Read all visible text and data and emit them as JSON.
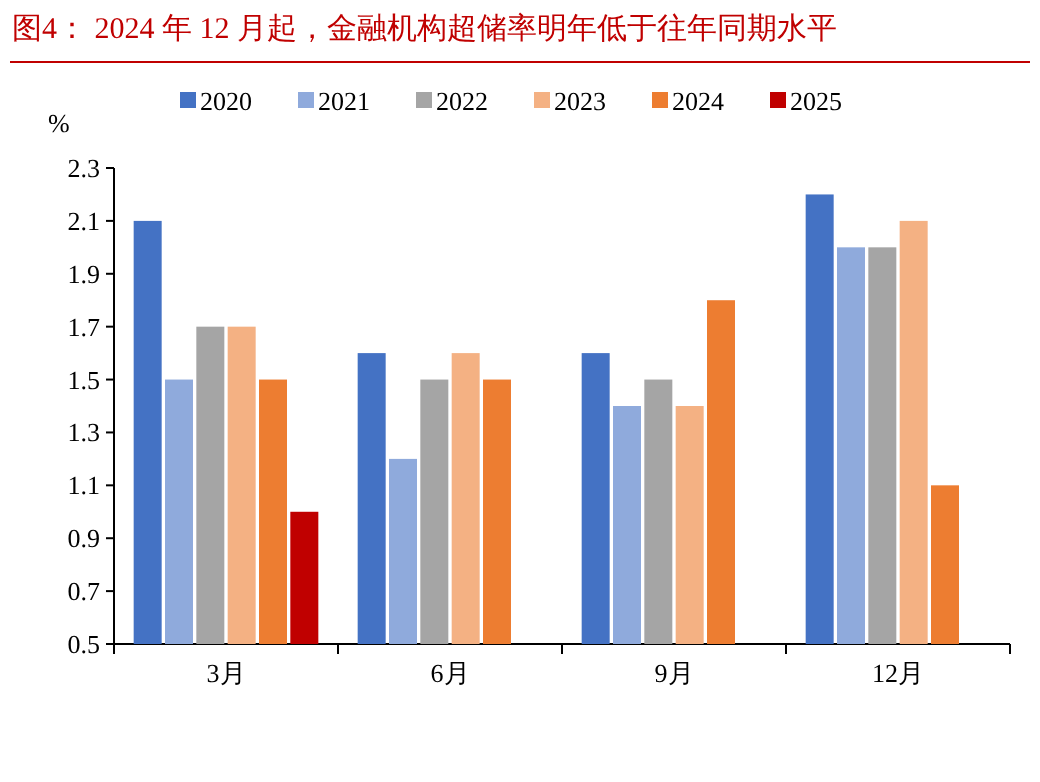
{
  "chart_data": {
    "type": "bar",
    "title": "图4：  2024 年 12 月起，金融机构超储率明年低于往年同期水平",
    "ylabel": "%",
    "categories": [
      "3月",
      "6月",
      "9月",
      "12月"
    ],
    "series": [
      {
        "name": "2020",
        "color": "#4472c4",
        "values": [
          2.1,
          1.6,
          1.6,
          2.2
        ]
      },
      {
        "name": "2021",
        "color": "#8faadc",
        "values": [
          1.5,
          1.2,
          1.4,
          2.0
        ]
      },
      {
        "name": "2022",
        "color": "#a5a5a5",
        "values": [
          1.7,
          1.5,
          1.5,
          2.0
        ]
      },
      {
        "name": "2023",
        "color": "#f4b183",
        "values": [
          1.7,
          1.6,
          1.4,
          2.1
        ]
      },
      {
        "name": "2024",
        "color": "#ed7d31",
        "values": [
          1.5,
          1.5,
          1.8,
          1.1
        ]
      },
      {
        "name": "2025",
        "color": "#c00000",
        "values": [
          1.0,
          null,
          null,
          null
        ]
      }
    ],
    "ylim": [
      0.5,
      2.3
    ],
    "yticks": [
      0.5,
      0.7,
      0.9,
      1.1,
      1.3,
      1.5,
      1.7,
      1.9,
      2.1,
      2.3
    ],
    "legend": "top",
    "grid": false
  }
}
